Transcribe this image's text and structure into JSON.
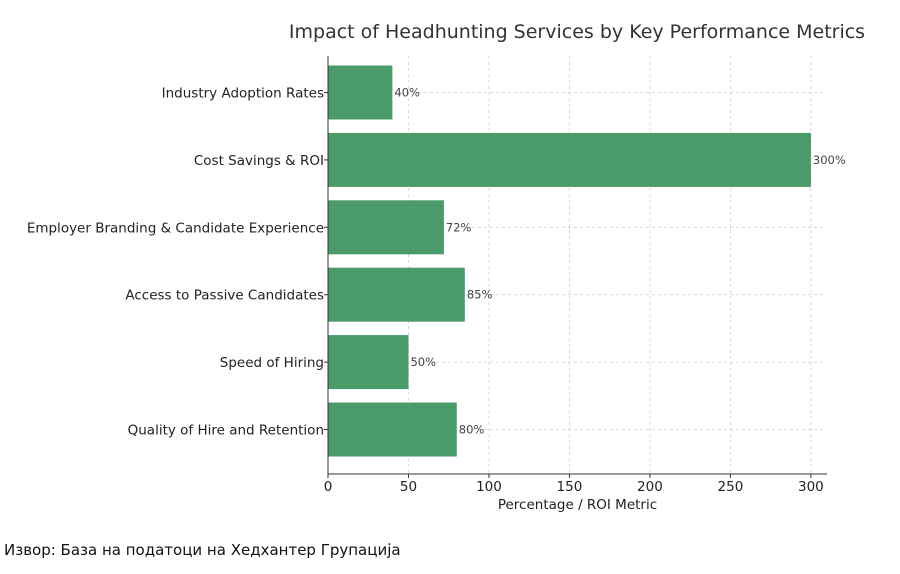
{
  "chart_data": {
    "type": "bar",
    "orientation": "horizontal",
    "title": "Impact of Headhunting Services by Key Performance Metrics",
    "xlabel": "Percentage / ROI Metric",
    "ylabel": "",
    "categories": [
      "Industry Adoption Rates",
      "Cost Savings & ROI",
      "Employer Branding & Candidate Experience",
      "Access to Passive Candidates",
      "Speed of Hiring",
      "Quality of Hire and Retention"
    ],
    "values": [
      40,
      300,
      72,
      85,
      50,
      80
    ],
    "data_labels": [
      "40%",
      "300%",
      "72%",
      "85%",
      "50%",
      "80%"
    ],
    "xlim": [
      0,
      310
    ],
    "xticks": [
      0,
      50,
      100,
      150,
      200,
      250,
      300
    ],
    "grid": true,
    "bar_color": "#4a9a6a"
  },
  "source_note": "Извор: База на податоци на Хедхантер Групација"
}
